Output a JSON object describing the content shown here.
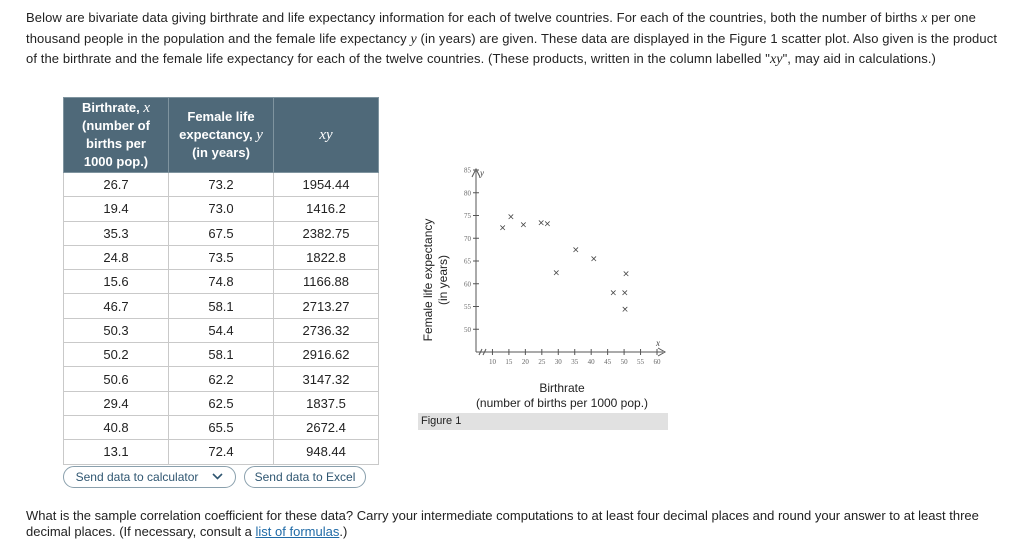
{
  "intro": {
    "p1": "Below are bivariate data giving birthrate and life expectancy information for each of twelve countries. For each of the countries, both the number of births ",
    "var_x": "x",
    "p2": " per one thousand people in the population and the female life expectancy ",
    "var_y": "y",
    "p3": " (in years) are given. These data are displayed in the Figure 1 scatter plot. Also given is the product of the birthrate and the female life expectancy for each of the twelve countries. (These products, written in the column labelled \"",
    "var_xy": "xy",
    "p4": "\", may aid in calculations.)"
  },
  "table": {
    "headers": {
      "col1_line1": "Birthrate, ",
      "col1_var": "x",
      "col1_line2": "(number of",
      "col1_line3": "births per",
      "col1_line4": "1000 pop.)",
      "col2_line1": "Female life",
      "col2_line2": "expectancy, ",
      "col2_var": "y",
      "col2_line3": "(in years)",
      "col3": "xy"
    },
    "rows": [
      [
        "26.7",
        "73.2",
        "1954.44"
      ],
      [
        "19.4",
        "73.0",
        "1416.2"
      ],
      [
        "35.3",
        "67.5",
        "2382.75"
      ],
      [
        "24.8",
        "73.5",
        "1822.8"
      ],
      [
        "15.6",
        "74.8",
        "1166.88"
      ],
      [
        "46.7",
        "58.1",
        "2713.27"
      ],
      [
        "50.3",
        "54.4",
        "2736.32"
      ],
      [
        "50.2",
        "58.1",
        "2916.62"
      ],
      [
        "50.6",
        "62.2",
        "3147.32"
      ],
      [
        "29.4",
        "62.5",
        "1837.5"
      ],
      [
        "40.8",
        "65.5",
        "2672.4"
      ],
      [
        "13.1",
        "72.4",
        "948.44"
      ]
    ]
  },
  "buttons": {
    "calculator": "Send data to calculator",
    "excel": "Send data to Excel"
  },
  "figure": {
    "ylabel_line1": "Female life expectancy",
    "ylabel_line2": "(in years)",
    "xlabel_line1": "Birthrate",
    "xlabel_line2": "(number of births per 1000 pop.)",
    "caption": "Figure 1",
    "y_var": "y",
    "x_var": "x"
  },
  "chart_data": {
    "type": "scatter",
    "x": [
      26.7,
      19.4,
      35.3,
      24.8,
      15.6,
      46.7,
      50.3,
      50.2,
      50.6,
      29.4,
      40.8,
      13.1
    ],
    "y": [
      73.2,
      73.0,
      67.5,
      73.5,
      74.8,
      58.1,
      54.4,
      58.1,
      62.2,
      62.5,
      65.5,
      72.4
    ],
    "xlabel": "Birthrate (number of births per 1000 pop.)",
    "ylabel": "Female life expectancy (in years)",
    "xticks": [
      10,
      15,
      20,
      25,
      30,
      35,
      40,
      45,
      50,
      55,
      60
    ],
    "yticks": [
      50,
      55,
      60,
      65,
      70,
      75,
      80,
      85
    ],
    "xlim": [
      5,
      60
    ],
    "ylim": [
      45,
      85
    ],
    "marker": "×",
    "grid": false
  },
  "question": {
    "text": "What is the sample correlation coefficient for these data? Carry your intermediate computations to at least four decimal places and round your answer to at least three decimal places. (If necessary, consult a ",
    "link": "list of formulas",
    "end": ".)"
  }
}
